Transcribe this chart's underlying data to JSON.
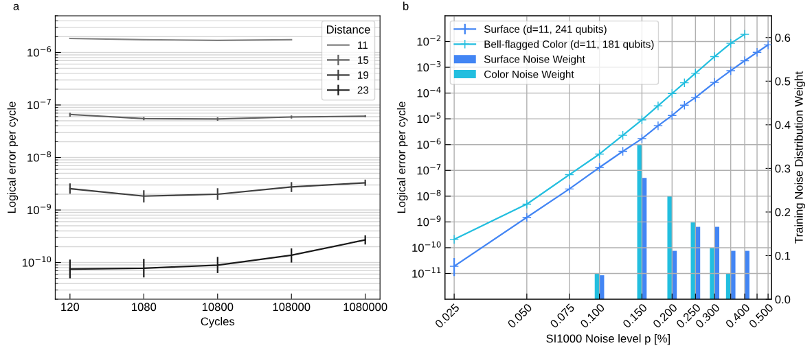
{
  "chart_data": [
    {
      "type": "line",
      "title": "a",
      "xlabel": "Cycles",
      "ylabel": "Logical error per cycle",
      "legend_title": "Distance",
      "legend": "top right",
      "log": "y",
      "grid": "y",
      "categories": [
        "120",
        "1080",
        "10800",
        "108000",
        "1080000"
      ],
      "ylim": [
        2e-11,
        5e-06
      ],
      "yticks": [
        {
          "value": 1e-10,
          "label": "10$^{−10}$"
        },
        {
          "value": 1e-09,
          "label": "10$^{−9}$"
        },
        {
          "value": 1e-08,
          "label": "10$^{−8}$"
        },
        {
          "value": 1e-07,
          "label": "10$^{−7}$"
        },
        {
          "value": 1e-06,
          "label": "10$^{−6}$"
        }
      ],
      "series": [
        {
          "name": "11",
          "color": "#808080",
          "values": [
            1.85e-06,
            1.75e-06,
            1.7e-06,
            1.75e-06,
            null
          ]
        },
        {
          "name": "15",
          "color": "#5f5f5f",
          "values": [
            6.6e-08,
            5.5e-08,
            5.4e-08,
            5.9e-08,
            6.1e-08
          ],
          "errors": [
            [
              6e-08,
              7.1e-08
            ],
            [
              5.1e-08,
              5.9e-08
            ],
            [
              5e-08,
              5.8e-08
            ],
            [
              5.5e-08,
              6.3e-08
            ],
            [
              5.8e-08,
              6.4e-08
            ]
          ]
        },
        {
          "name": "19",
          "color": "#3f3f3f",
          "values": [
            2.55e-09,
            1.84e-09,
            2e-09,
            2.75e-09,
            3.3e-09
          ],
          "errors": [
            [
              2.05e-09,
              3.2e-09
            ],
            [
              1.39e-09,
              2.38e-09
            ],
            [
              1.57e-09,
              2.6e-09
            ],
            [
              2.2e-09,
              3.4e-09
            ],
            [
              2.9e-09,
              3.8e-09
            ]
          ]
        },
        {
          "name": "23",
          "color": "#1a1a1a",
          "values": [
            7.5e-11,
            7.8e-11,
            8.9e-11,
            1.38e-10,
            2.7e-10
          ],
          "errors": [
            [
              5e-11,
              1.14e-10
            ],
            [
              5.2e-11,
              1.17e-10
            ],
            [
              6.3e-11,
              1.28e-10
            ],
            [
              1e-10,
              1.86e-10
            ],
            [
              2.2e-10,
              3.3e-10
            ]
          ]
        }
      ]
    },
    {
      "type": "line",
      "title": "b",
      "xlabel": "SI1000 Noise level p [%]",
      "ylabel": "Logical error per cycle",
      "y2label": "Training Noise Distribution Weight",
      "legend": "top left",
      "log": "xy",
      "grid": true,
      "marker": "cross",
      "xlim": [
        0.0229,
        0.516
      ],
      "xticks": [
        {
          "value": 0.025,
          "label": "0.025"
        },
        {
          "value": 0.05,
          "label": "0.050"
        },
        {
          "value": 0.075,
          "label": "0.075"
        },
        {
          "value": 0.1,
          "label": "0.100"
        },
        {
          "value": 0.15,
          "label": "0.150"
        },
        {
          "value": 0.2,
          "label": "0.200"
        },
        {
          "value": 0.25,
          "label": "0.250"
        },
        {
          "value": 0.3,
          "label": "0.300"
        },
        {
          "value": 0.35,
          "label": null
        },
        {
          "value": 0.4,
          "label": "0.400"
        },
        {
          "value": 0.45,
          "label": null
        },
        {
          "value": 0.5,
          "label": "0.500"
        }
      ],
      "ylim": [
        1e-12,
        0.1
      ],
      "yticks": [
        {
          "value": 1e-11,
          "label": "10$^{−11}$"
        },
        {
          "value": 1e-10,
          "label": "10$^{−10}$"
        },
        {
          "value": 1e-09,
          "label": "10$^{−9}$"
        },
        {
          "value": 1e-08,
          "label": "10$^{−8}$"
        },
        {
          "value": 1e-07,
          "label": "10$^{−7}$"
        },
        {
          "value": 1e-06,
          "label": "10$^{−6}$"
        },
        {
          "value": 1e-05,
          "label": "10$^{−5}$"
        },
        {
          "value": 0.0001,
          "label": "10$^{−4}$"
        },
        {
          "value": 0.001,
          "label": "10$^{−3}$"
        },
        {
          "value": 0.01,
          "label": "10$^{−2}$"
        }
      ],
      "y2lim": [
        0,
        0.65
      ],
      "y2ticks": [
        {
          "value": 0,
          "label": "0.0"
        },
        {
          "value": 0.1,
          "label": "0.1"
        },
        {
          "value": 0.2,
          "label": "0.2"
        },
        {
          "value": 0.3,
          "label": "0.3"
        },
        {
          "value": 0.4,
          "label": "0.4"
        },
        {
          "value": 0.5,
          "label": "0.5"
        },
        {
          "value": 0.6,
          "label": "0.6"
        }
      ],
      "series": [
        {
          "name": "Surface (d=11, 241 qubits)",
          "color": "#4285f4",
          "x": [
            0.025,
            0.05,
            0.075,
            0.1,
            0.125,
            0.15,
            0.175,
            0.2,
            0.225,
            0.25,
            0.3,
            0.35,
            0.4,
            0.45,
            0.5
          ],
          "values": [
            1.9e-11,
            1.5e-09,
            1.9e-08,
            1.3e-07,
            5.5e-07,
            1.7e-06,
            5.4e-06,
            1.35e-05,
            3.4e-05,
            6.7e-05,
            0.00026,
            0.00074,
            0.0018,
            0.0038,
            0.0074
          ],
          "errors": [
            [
              8e-12,
              4e-11
            ],
            null,
            null,
            null,
            null,
            null,
            null,
            null,
            null,
            null,
            null,
            null,
            null,
            null,
            null
          ]
        },
        {
          "name": "Bell-flagged Color (d=11, 181 qubits)",
          "color": "#22bedf",
          "x": [
            0.025,
            0.05,
            0.075,
            0.1,
            0.125,
            0.15,
            0.175,
            0.2,
            0.225,
            0.25,
            0.3,
            0.35,
            0.4
          ],
          "values": [
            2.1e-10,
            4.9e-09,
            6.8e-08,
            4.3e-07,
            2.3e-06,
            9.1e-06,
            3.2e-05,
            9.6e-05,
            0.00025,
            0.00059,
            0.0026,
            0.0085,
            0.019
          ]
        },
        {
          "name": "Surface Noise Weight",
          "type": "bar",
          "axis": "y2",
          "color": "#4285f4",
          "x": [
            0.1,
            0.15,
            0.2,
            0.25,
            0.3,
            0.35,
            0.4
          ],
          "values": [
            0.055,
            0.278,
            0.111,
            0.166,
            0.166,
            0.111,
            0.111
          ]
        },
        {
          "name": "Color Noise Weight",
          "type": "bar",
          "axis": "y2",
          "color": "#22bedf",
          "x": [
            0.1,
            0.15,
            0.2,
            0.25,
            0.3,
            0.35
          ],
          "values": [
            0.059,
            0.354,
            0.236,
            0.176,
            0.118,
            0.059
          ]
        }
      ]
    }
  ]
}
